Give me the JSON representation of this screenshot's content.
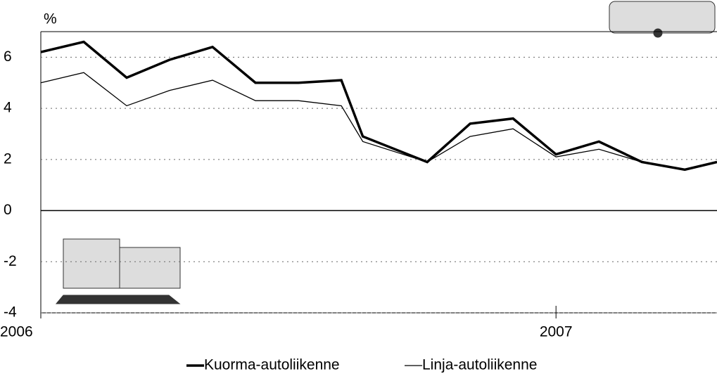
{
  "chart_data": {
    "type": "line",
    "y_label": "%",
    "x": [
      0,
      1,
      2,
      3,
      4,
      5,
      6,
      7,
      7.5,
      9,
      10,
      11,
      12,
      13,
      14,
      15,
      15.75
    ],
    "xlim": [
      0,
      15.75
    ],
    "xticks": [
      {
        "value": 0,
        "label": "2006"
      },
      {
        "value": 12,
        "label": "2007"
      }
    ],
    "ylim": [
      -4,
      7
    ],
    "yticks": [
      -4,
      -2,
      0,
      2,
      4,
      6
    ],
    "grid": true,
    "series": [
      {
        "name": "Kuorma-autoliikenne",
        "color": "#000000",
        "values": [
          6.2,
          6.6,
          5.2,
          5.9,
          6.4,
          5.0,
          5.0,
          5.1,
          2.9,
          1.9,
          3.4,
          3.6,
          2.2,
          2.7,
          1.9,
          1.6,
          1.9
        ]
      },
      {
        "name": "Linja-autoliikenne",
        "color": "#000000",
        "values": [
          5.0,
          5.4,
          4.1,
          4.7,
          5.1,
          4.3,
          4.3,
          4.1,
          2.7,
          1.9,
          2.9,
          3.2,
          2.1,
          2.4,
          1.9,
          1.6,
          1.9
        ]
      }
    ]
  }
}
